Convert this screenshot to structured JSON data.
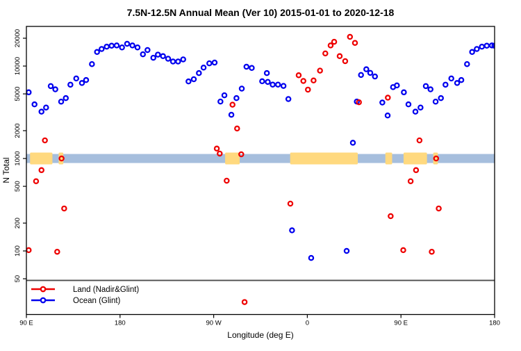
{
  "title": "7.5N-12.5N Annual Mean (Ver 10)   2015-01-01 to 2020-12-18",
  "axes": {
    "x_label": "Longitude (deg E)",
    "y_label": "N Total"
  },
  "legend": {
    "items": [
      {
        "label": "Land (Nadir&Glint)",
        "color": "#ee0000"
      },
      {
        "label": "Ocean (Glint)",
        "color": "#0000ee"
      }
    ]
  },
  "colors": {
    "land_series": "#ee0000",
    "ocean_series": "#0000ee",
    "map_strip_ocean": "#a6bedd",
    "map_strip_land": "#ffd97f",
    "divider_line": "#4d4d4d",
    "frame": "#000000"
  },
  "chart_data": {
    "type": "scatter",
    "title": "7.5N-12.5N Annual Mean (Ver 10)   2015-01-01 to 2020-12-18",
    "xlabel": "Longitude (deg E)",
    "ylabel": "N Total",
    "x_axis": {
      "range": [
        90,
        540
      ],
      "note": "longitude axis wraps eastward: 90E to 180 shown twice",
      "ticks": [
        {
          "pos": 90,
          "label": "90 E"
        },
        {
          "pos": 180,
          "label": "180"
        },
        {
          "pos": 270,
          "label": "90 W"
        },
        {
          "pos": 360,
          "label": "0"
        },
        {
          "pos": 450,
          "label": "90 E"
        },
        {
          "pos": 540,
          "label": "180"
        }
      ]
    },
    "y_axis": {
      "scale": "log",
      "ticks": [
        20000,
        10000,
        5000,
        2000,
        1000,
        500,
        200,
        100,
        50
      ],
      "tick_labels": [
        "20000",
        "10000",
        "5000",
        "2000",
        "1000",
        "500",
        "200",
        "100",
        "50"
      ],
      "top_value": 27000,
      "bottom_value": 21
    },
    "divider_line": {
      "value": 48,
      "color": "#4d4d4d"
    },
    "map_strip": {
      "center_value": 1000,
      "ocean_color": "#a6bedd",
      "land_color": "#ffd97f",
      "land_segments": [
        [
          93.5,
          115
        ],
        [
          121,
          125.5
        ],
        [
          281,
          295
        ],
        [
          343.5,
          408.5
        ],
        [
          435,
          441.5
        ],
        [
          452.5,
          475
        ],
        [
          481,
          485.5
        ]
      ]
    },
    "series": [
      {
        "name": "Land (Nadir&Glint)",
        "color": "#ee0000",
        "marker": "open-circle",
        "points": [
          [
            92.2,
            102
          ],
          [
            99.3,
            568
          ],
          [
            104.5,
            748
          ],
          [
            107.8,
            1570
          ],
          [
            119.6,
            98
          ],
          [
            123.8,
            1000
          ],
          [
            126.3,
            288
          ],
          [
            273,
            1280
          ],
          [
            275.8,
            1130
          ],
          [
            282.5,
            575
          ],
          [
            288.1,
            3820
          ],
          [
            292.5,
            2110
          ],
          [
            296.5,
            1110
          ],
          [
            299.7,
            28
          ],
          [
            343.7,
            325
          ],
          [
            351.7,
            7950
          ],
          [
            356.2,
            6900
          ],
          [
            360.6,
            5560
          ],
          [
            366,
            6980
          ],
          [
            372.2,
            8930
          ],
          [
            377.3,
            13700
          ],
          [
            382.4,
            16700
          ],
          [
            385.8,
            18300
          ],
          [
            391.1,
            12800
          ],
          [
            396.4,
            11300
          ],
          [
            401,
            20700
          ],
          [
            405.8,
            17800
          ],
          [
            409.6,
            4060
          ],
          [
            437.4,
            4550
          ],
          [
            440.1,
            238
          ],
          [
            452.2,
            102
          ],
          [
            459.3,
            568
          ],
          [
            464.5,
            748
          ],
          [
            467.8,
            1570
          ],
          [
            479.6,
            98
          ],
          [
            483.8,
            1000
          ],
          [
            486.3,
            288
          ]
        ]
      },
      {
        "name": "Ocean (Glint)",
        "color": "#0000ee",
        "marker": "open-circle",
        "points": [
          [
            92.2,
            5200
          ],
          [
            97.8,
            3850
          ],
          [
            104.5,
            3210
          ],
          [
            108.9,
            3560
          ],
          [
            113.4,
            6070
          ],
          [
            117.8,
            5600
          ],
          [
            123.4,
            4120
          ],
          [
            127.9,
            4500
          ],
          [
            132.3,
            6290
          ],
          [
            137.9,
            7340
          ],
          [
            143.4,
            6560
          ],
          [
            147.4,
            7060
          ],
          [
            153,
            10500
          ],
          [
            157.9,
            14200
          ],
          [
            162.3,
            15300
          ],
          [
            167.2,
            16200
          ],
          [
            171.9,
            16600
          ],
          [
            176.8,
            16700
          ],
          [
            181.9,
            15900
          ],
          [
            186.8,
            17400
          ],
          [
            191.9,
            16700
          ],
          [
            196.8,
            15900
          ],
          [
            202,
            13400
          ],
          [
            206.4,
            14900
          ],
          [
            212,
            12300
          ],
          [
            216.4,
            13300
          ],
          [
            221.3,
            12800
          ],
          [
            226.2,
            12000
          ],
          [
            230.9,
            11200
          ],
          [
            235.8,
            11200
          ],
          [
            240.7,
            11800
          ],
          [
            245.8,
            6820
          ],
          [
            250.9,
            7200
          ],
          [
            255.8,
            8390
          ],
          [
            260.3,
            9620
          ],
          [
            265.8,
            10700
          ],
          [
            270.9,
            10900
          ],
          [
            276.5,
            4130
          ],
          [
            280.3,
            4830
          ],
          [
            287,
            2970
          ],
          [
            291.9,
            4500
          ],
          [
            297,
            5700
          ],
          [
            301.5,
            9830
          ],
          [
            306.6,
            9540
          ],
          [
            316.6,
            6850
          ],
          [
            321.1,
            8390
          ],
          [
            322,
            6740
          ],
          [
            326.7,
            6300
          ],
          [
            331.8,
            6300
          ],
          [
            337.1,
            6100
          ],
          [
            341.8,
            4400
          ],
          [
            345.3,
            167
          ],
          [
            363.7,
            84
          ],
          [
            397.8,
            100
          ],
          [
            403.8,
            1480
          ],
          [
            407.6,
            4130
          ],
          [
            411.6,
            8010
          ],
          [
            416.7,
            9230
          ],
          [
            420.5,
            8440
          ],
          [
            425,
            7710
          ],
          [
            432.1,
            4030
          ],
          [
            437.2,
            2920
          ],
          [
            442.4,
            5920
          ],
          [
            446.1,
            6170
          ],
          [
            452.8,
            5200
          ],
          [
            457.2,
            3850
          ],
          [
            463.9,
            3210
          ],
          [
            468.8,
            3560
          ],
          [
            473.9,
            6070
          ],
          [
            478.4,
            5600
          ],
          [
            483.3,
            4120
          ],
          [
            488.4,
            4500
          ],
          [
            492.8,
            6290
          ],
          [
            498.4,
            7340
          ],
          [
            504,
            6560
          ],
          [
            508,
            7060
          ],
          [
            513.5,
            10500
          ],
          [
            518.4,
            14200
          ],
          [
            522.9,
            15300
          ],
          [
            527.8,
            16200
          ],
          [
            532.5,
            16600
          ],
          [
            537.4,
            16700
          ],
          [
            539.8,
            16600
          ]
        ]
      }
    ]
  }
}
